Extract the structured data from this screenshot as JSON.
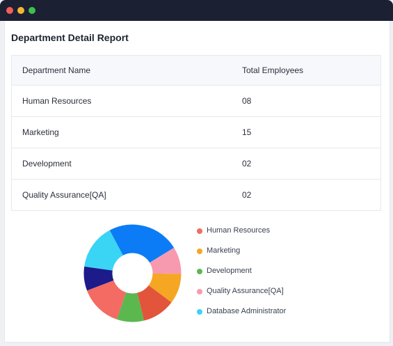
{
  "window": {
    "controls": [
      {
        "name": "close",
        "color": "#f25f58"
      },
      {
        "name": "minimize",
        "color": "#f5b731"
      },
      {
        "name": "maximize",
        "color": "#3fbf4b"
      }
    ]
  },
  "report": {
    "title": "Department Detail Report",
    "columns": [
      "Department Name",
      "Total Employees"
    ],
    "rows": [
      {
        "name": "Human Resources",
        "total": "08"
      },
      {
        "name": "Marketing",
        "total": "15"
      },
      {
        "name": "Development",
        "total": "02"
      },
      {
        "name": "Quality Assurance[QA]",
        "total": "02"
      }
    ]
  },
  "legend": [
    {
      "label": "Human Resources",
      "color": "#f36b62"
    },
    {
      "label": "Marketing",
      "color": "#f5a623"
    },
    {
      "label": "Development",
      "color": "#5bb84f"
    },
    {
      "label": "Quality Assurance[QA]",
      "color": "#f79ab0"
    },
    {
      "label": "Database Administrator",
      "color": "#3ad4f5"
    }
  ],
  "chart_data": {
    "type": "pie",
    "variant": "donut",
    "segments": [
      {
        "color": "#0b7cf5",
        "value": 24
      },
      {
        "color": "#f79ab0",
        "value": 9
      },
      {
        "color": "#f5a623",
        "value": 10
      },
      {
        "color": "#e2553a",
        "value": 11
      },
      {
        "color": "#5bb84f",
        "value": 9
      },
      {
        "color": "#f36b62",
        "value": 14
      },
      {
        "color": "#1d1a8a",
        "value": 8
      },
      {
        "color": "#3ad4f5",
        "value": 15
      }
    ]
  }
}
